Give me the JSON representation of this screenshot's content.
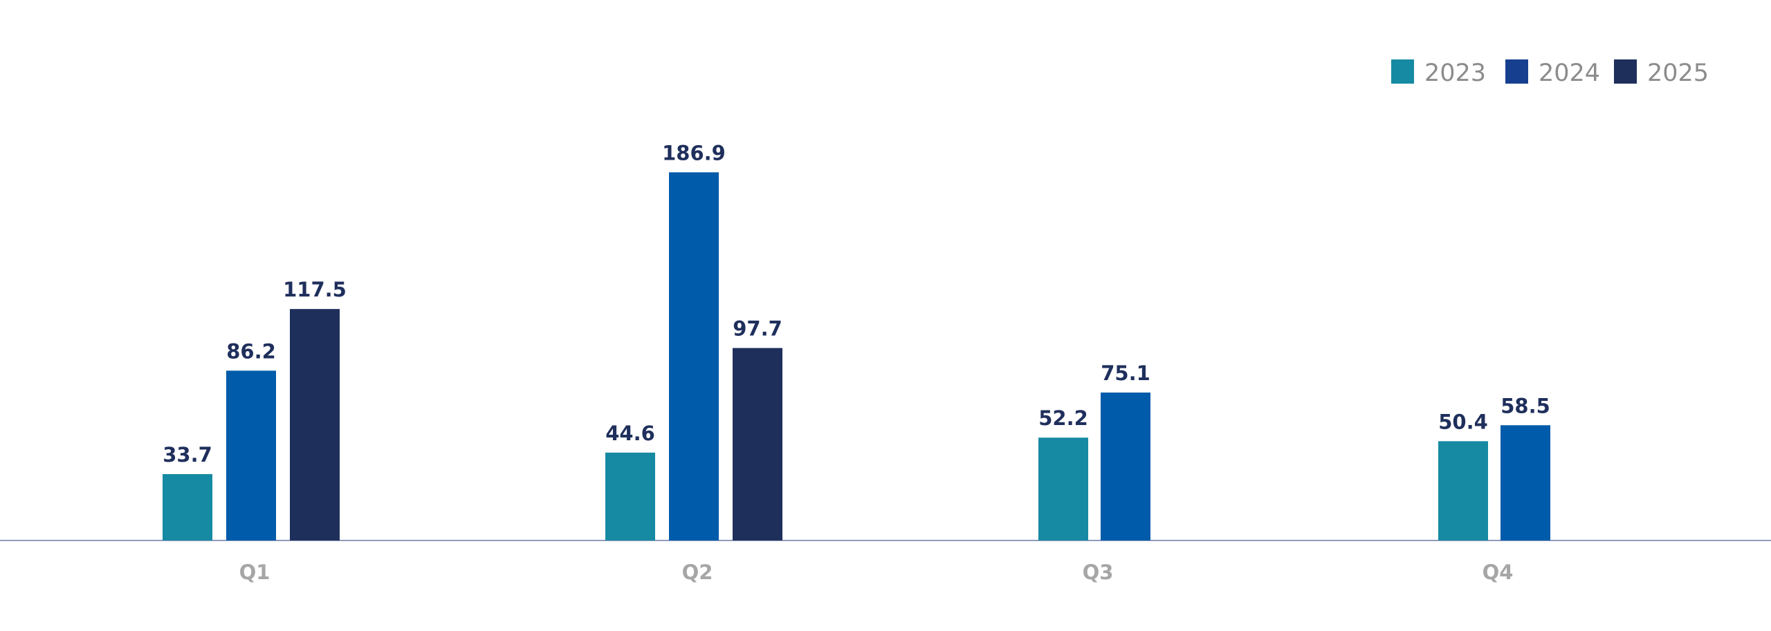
{
  "chart_data": {
    "type": "bar",
    "title": "",
    "xlabel": "",
    "ylabel": "",
    "categories": [
      "Q1",
      "Q2",
      "Q3",
      "Q4"
    ],
    "series": [
      {
        "name": "2023",
        "values": [
          33.7,
          44.6,
          52.2,
          50.4
        ],
        "color": "#168aa3",
        "legend_color": "#168aa3"
      },
      {
        "name": "2024",
        "values": [
          86.2,
          186.9,
          75.1,
          58.5
        ],
        "color": "#005baa",
        "legend_color": "#173f8f"
      },
      {
        "name": "2025",
        "values": [
          117.5,
          97.7,
          null,
          null
        ],
        "color": "#1f2f5c",
        "legend_color": "#1f2f5c"
      }
    ],
    "value_labels": [
      [
        "33.7",
        "44.6",
        "52.2",
        "50.4"
      ],
      [
        "86.2",
        "186.9",
        "75.1",
        "58.5"
      ],
      [
        "117.5",
        "97.7",
        null,
        null
      ]
    ],
    "ylim": [
      0,
      200
    ],
    "grid": false,
    "legend_position": "top-right"
  }
}
